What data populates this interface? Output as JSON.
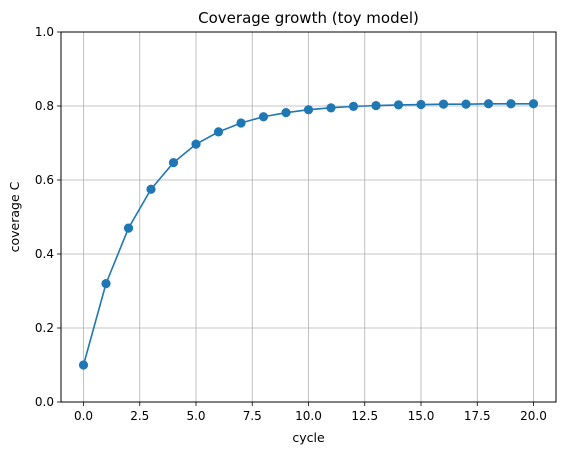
{
  "chart_data": {
    "type": "line",
    "title": "Coverage growth (toy model)",
    "xlabel": "cycle",
    "ylabel": "coverage C",
    "xlim": [
      -1,
      21
    ],
    "ylim": [
      0,
      1.0
    ],
    "x_ticks": [
      0,
      2.5,
      5,
      7.5,
      10,
      12.5,
      15,
      17.5,
      20
    ],
    "x_tick_labels": [
      "0.0",
      "2.5",
      "5.0",
      "7.5",
      "10.0",
      "12.5",
      "15.0",
      "17.5",
      "20.0"
    ],
    "y_ticks": [
      0,
      0.2,
      0.4,
      0.6,
      0.8,
      1.0
    ],
    "y_tick_labels": [
      "0.0",
      "0.2",
      "0.4",
      "0.6",
      "0.8",
      "1.0"
    ],
    "grid": true,
    "series": [
      {
        "color": "#1f77b4",
        "marker": "circle",
        "x": [
          0,
          1,
          2,
          3,
          4,
          5,
          6,
          7,
          8,
          9,
          10,
          11,
          12,
          13,
          14,
          15,
          16,
          17,
          18,
          19,
          20
        ],
        "y": [
          0.1,
          0.32,
          0.47,
          0.575,
          0.647,
          0.697,
          0.73,
          0.754,
          0.771,
          0.782,
          0.79,
          0.795,
          0.799,
          0.801,
          0.803,
          0.804,
          0.805,
          0.805,
          0.806,
          0.806,
          0.806
        ]
      }
    ]
  }
}
